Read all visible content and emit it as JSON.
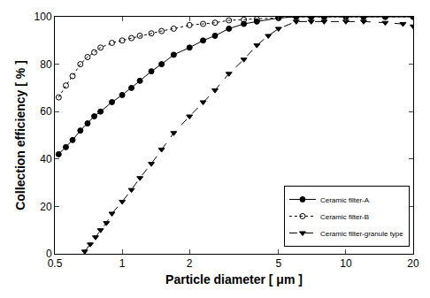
{
  "chart_data": {
    "type": "line",
    "x_label": "Particle diameter [ μm ]",
    "y_label": "Collection efficiency [ % ]",
    "log": "x",
    "xlim": [
      0.5,
      20
    ],
    "xticks": [
      0.5,
      1,
      2,
      5,
      10,
      20
    ],
    "ylim": [
      0,
      100
    ],
    "yticks": [
      0,
      20,
      40,
      60,
      80,
      100
    ],
    "grid": false,
    "legend": "lower right",
    "series": [
      {
        "name": "Ceramic filter-A",
        "color": "#000000",
        "marker": "circle",
        "line_style": "solid",
        "x": [
          0.52,
          0.56,
          0.6,
          0.65,
          0.7,
          0.75,
          0.8,
          0.9,
          1.0,
          1.1,
          1.2,
          1.35,
          1.5,
          1.7,
          2.0,
          2.3,
          2.6,
          3.0,
          3.5,
          4.0,
          5.0,
          6.0,
          7.0,
          8.0,
          10.0,
          12.0,
          15.0,
          20.0
        ],
        "values": [
          42,
          45,
          48,
          52,
          55,
          58,
          60,
          64,
          67,
          70,
          73,
          77,
          80,
          84,
          87,
          90,
          92,
          95,
          97,
          98,
          99.5,
          100,
          100,
          100,
          100,
          100,
          100,
          100
        ]
      },
      {
        "name": "Ceramic filter-B",
        "color": "#000000",
        "marker": "circle-open",
        "line_style": "dot",
        "x": [
          0.52,
          0.56,
          0.6,
          0.65,
          0.7,
          0.75,
          0.8,
          0.9,
          1.0,
          1.1,
          1.2,
          1.35,
          1.5,
          1.7,
          2.0,
          2.3,
          2.6,
          3.0,
          3.5,
          4.0,
          5.0,
          6.0,
          7.0,
          8.0,
          10.0,
          12.0,
          15.0,
          20.0
        ],
        "values": [
          66,
          71,
          75,
          80,
          83,
          85,
          87,
          89,
          90,
          91,
          92,
          93,
          94,
          95,
          96.5,
          97,
          97.5,
          98.5,
          98.8,
          99,
          99.5,
          100,
          100,
          100,
          100,
          100,
          100,
          100
        ]
      },
      {
        "name": "Ceramic filter-granule type",
        "color": "#000000",
        "marker": "triangle-down",
        "line_style": "dash",
        "x": [
          0.68,
          0.72,
          0.76,
          0.8,
          0.85,
          0.9,
          1.0,
          1.1,
          1.2,
          1.35,
          1.5,
          1.7,
          2.0,
          2.3,
          2.6,
          3.0,
          3.5,
          4.0,
          4.5,
          5.0,
          6.0,
          7.0,
          8.0,
          10.0,
          12.0,
          15.0,
          18.0,
          20.0
        ],
        "values": [
          1,
          4,
          7,
          10,
          13,
          17,
          22,
          27,
          32,
          38,
          44,
          51,
          58,
          64,
          69,
          76,
          82,
          88,
          92,
          95,
          98,
          98,
          98,
          98,
          98,
          97.5,
          97,
          96
        ]
      }
    ]
  }
}
